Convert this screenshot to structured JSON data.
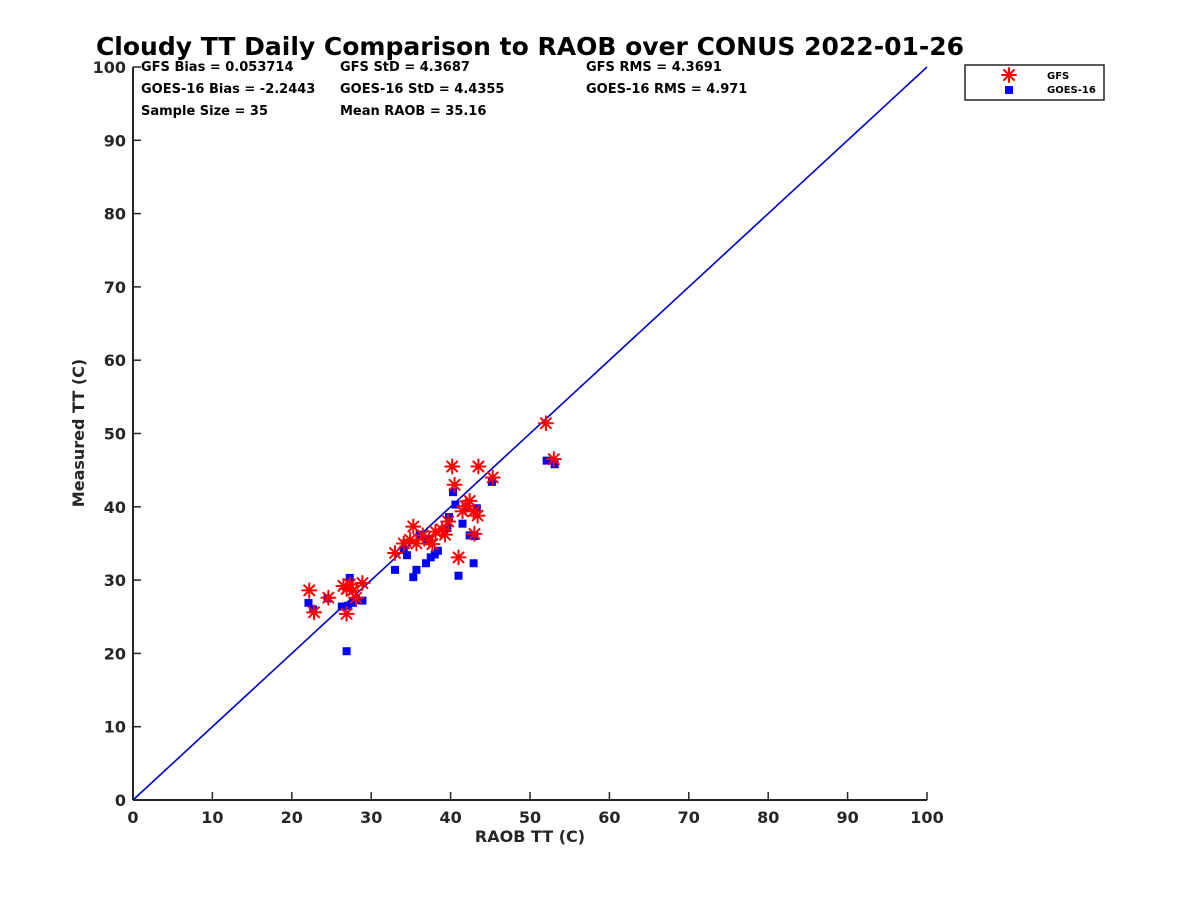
{
  "chart_data": {
    "type": "scatter",
    "title": "Cloudy TT Daily Comparison to RAOB over CONUS 2022-01-26",
    "xlabel": "RAOB TT (C)",
    "ylabel": "Measured TT (C)",
    "xlim": [
      0,
      100
    ],
    "ylim": [
      0,
      100
    ],
    "xticks": [
      "0",
      "10",
      "20",
      "30",
      "40",
      "50",
      "60",
      "70",
      "80",
      "90",
      "100"
    ],
    "yticks": [
      "0",
      "10",
      "20",
      "30",
      "40",
      "50",
      "60",
      "70",
      "80",
      "90",
      "100"
    ],
    "grid": false,
    "legend_position": "outside-top-right",
    "reference_line": {
      "kind": "one-to-one",
      "color": "#0000cc"
    },
    "stats": {
      "gfs_bias": "GFS Bias = 0.053714",
      "gfs_std": "GFS StD = 4.3687",
      "gfs_rms": "GFS RMS = 4.3691",
      "goes_bias": "GOES-16 Bias = -2.2443",
      "goes_std": "GOES-16 StD = 4.4355",
      "goes_rms": "GOES-16 RMS = 4.971",
      "sample_size": "Sample Size = 35",
      "mean_raob": "Mean RAOB = 35.16"
    },
    "series": [
      {
        "name": "GFS",
        "marker": "asterisk",
        "color": "#ff0000",
        "points": [
          [
            22.2,
            28.6
          ],
          [
            22.8,
            25.6
          ],
          [
            24.6,
            27.6
          ],
          [
            26.5,
            29.2
          ],
          [
            26.9,
            28.8
          ],
          [
            26.9,
            25.4
          ],
          [
            27.3,
            29.4
          ],
          [
            27.7,
            28.6
          ],
          [
            28.1,
            27.6
          ],
          [
            28.9,
            29.6
          ],
          [
            33.0,
            33.7
          ],
          [
            34.1,
            35.0
          ],
          [
            34.9,
            35.5
          ],
          [
            35.3,
            37.3
          ],
          [
            35.7,
            35.0
          ],
          [
            36.5,
            36.1
          ],
          [
            37.3,
            35.4
          ],
          [
            37.7,
            34.9
          ],
          [
            38.1,
            36.6
          ],
          [
            38.9,
            36.9
          ],
          [
            39.3,
            36.2
          ],
          [
            39.7,
            38.0
          ],
          [
            40.2,
            45.5
          ],
          [
            40.5,
            43.0
          ],
          [
            41.0,
            33.1
          ],
          [
            41.5,
            39.4
          ],
          [
            42.4,
            40.8
          ],
          [
            42.9,
            39.4
          ],
          [
            43.0,
            36.3
          ],
          [
            43.4,
            38.8
          ],
          [
            43.5,
            45.5
          ],
          [
            45.3,
            44.0
          ],
          [
            52.0,
            51.4
          ],
          [
            53.0,
            46.5
          ],
          [
            41.9,
            40.1
          ]
        ]
      },
      {
        "name": "GOES-16",
        "marker": "square",
        "color": "#0000ff",
        "points": [
          [
            22.1,
            26.9
          ],
          [
            22.7,
            26.0
          ],
          [
            24.5,
            27.5
          ],
          [
            26.3,
            26.4
          ],
          [
            26.9,
            20.3
          ],
          [
            27.1,
            26.5
          ],
          [
            27.3,
            30.3
          ],
          [
            27.7,
            26.9
          ],
          [
            28.1,
            27.3
          ],
          [
            28.9,
            27.2
          ],
          [
            33.0,
            31.4
          ],
          [
            34.1,
            34.1
          ],
          [
            34.5,
            33.4
          ],
          [
            35.3,
            30.4
          ],
          [
            35.7,
            31.4
          ],
          [
            36.1,
            36.2
          ],
          [
            36.9,
            32.3
          ],
          [
            37.0,
            35.5
          ],
          [
            37.5,
            33.1
          ],
          [
            38.0,
            33.5
          ],
          [
            38.4,
            34.0
          ],
          [
            39.6,
            37.1
          ],
          [
            39.8,
            38.6
          ],
          [
            40.3,
            42.0
          ],
          [
            40.6,
            40.3
          ],
          [
            41.0,
            30.6
          ],
          [
            41.5,
            37.7
          ],
          [
            42.0,
            40.0
          ],
          [
            42.4,
            36.1
          ],
          [
            42.9,
            32.3
          ],
          [
            43.0,
            36.0
          ],
          [
            43.3,
            39.8
          ],
          [
            45.2,
            43.4
          ],
          [
            52.1,
            46.3
          ],
          [
            53.1,
            45.8
          ]
        ]
      }
    ]
  }
}
